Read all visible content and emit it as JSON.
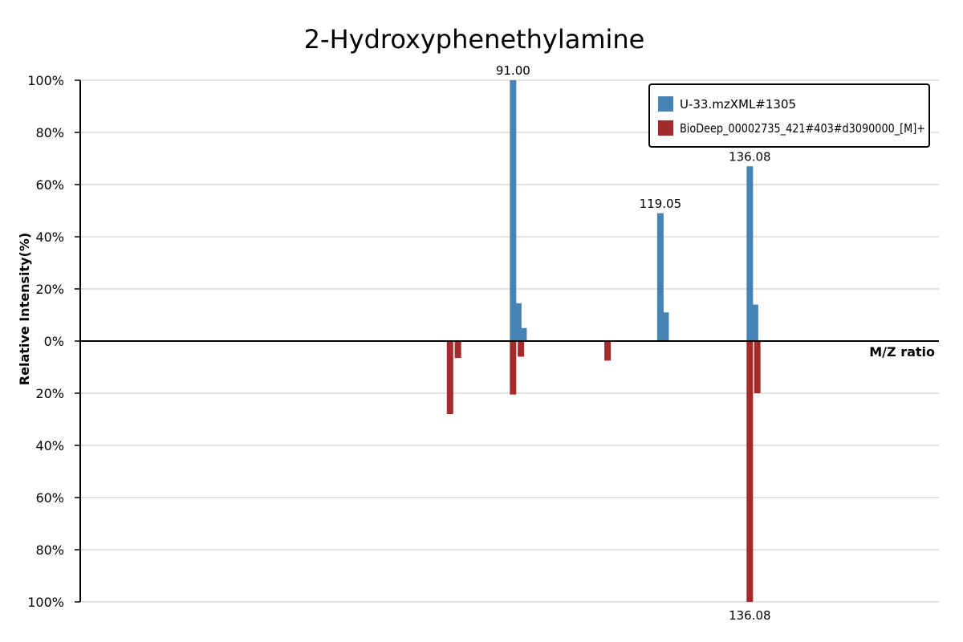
{
  "chart_data": {
    "type": "bar",
    "title": "2-Hydroxyphenethylamine",
    "xlabel": "M/Z ratio",
    "ylabel": "Relative Intensity(%)",
    "ylim": [
      -100,
      100
    ],
    "y_ticks": [
      "100%",
      "80%",
      "60%",
      "40%",
      "20%",
      "0%",
      "20%",
      "40%",
      "60%",
      "80%",
      "100%"
    ],
    "grid": true,
    "legend_position": "top-right",
    "colors": {
      "query": "#4682b4",
      "reference": "#a52a2a"
    },
    "series": [
      {
        "name": "U-33.mzXML#1305",
        "direction": "up",
        "color": "#4682b4",
        "peaks": [
          {
            "mz": 91.0,
            "intensity": 100,
            "label": "91.00"
          },
          {
            "mz": 92.0,
            "intensity": 14.5
          },
          {
            "mz": 93.0,
            "intensity": 5
          },
          {
            "mz": 119.05,
            "intensity": 49,
            "label": "119.05"
          },
          {
            "mz": 120.05,
            "intensity": 11
          },
          {
            "mz": 136.08,
            "intensity": 67,
            "label": "136.08"
          },
          {
            "mz": 137.08,
            "intensity": 14
          }
        ]
      },
      {
        "name": "BioDeep_00002735_421#403#d3090000_[M]+",
        "direction": "down",
        "color": "#a52a2a",
        "peaks": [
          {
            "mz": 79.0,
            "intensity": 28
          },
          {
            "mz": 80.5,
            "intensity": 6.5
          },
          {
            "mz": 91.0,
            "intensity": 20.5
          },
          {
            "mz": 92.5,
            "intensity": 6
          },
          {
            "mz": 109.0,
            "intensity": 7.5
          },
          {
            "mz": 136.08,
            "intensity": 100,
            "label": "136.08"
          },
          {
            "mz": 137.5,
            "intensity": 20
          }
        ]
      }
    ]
  }
}
